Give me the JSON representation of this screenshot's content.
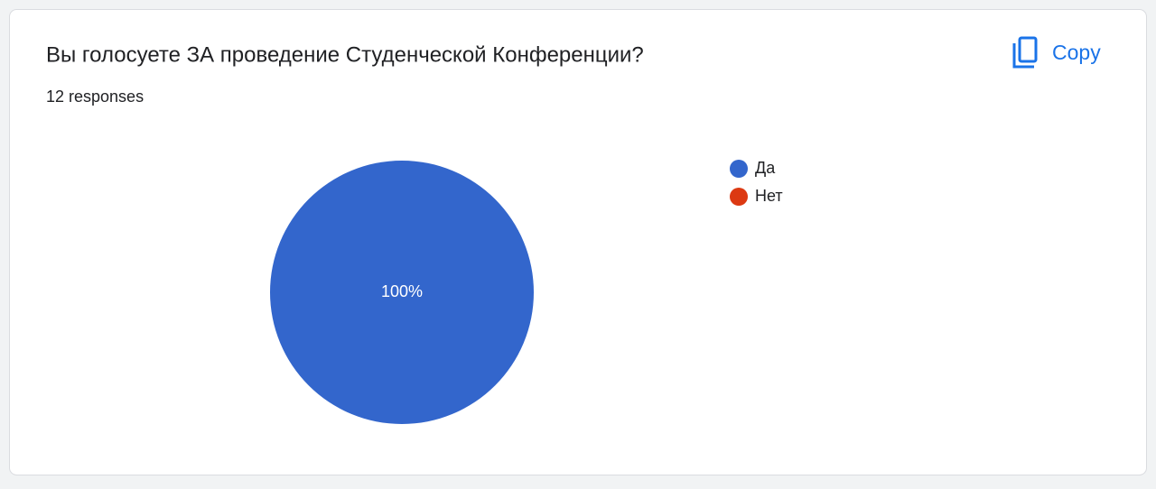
{
  "chart_data": {
    "type": "pie",
    "title": "Вы голосуете ЗА проведение Студенческой Конференции?",
    "subtitle": "12 responses",
    "categories": [
      "Да",
      "Нет"
    ],
    "values": [
      100,
      0
    ],
    "value_labels": [
      "100%",
      null
    ],
    "colors": [
      "#3366cc",
      "#dc3912"
    ],
    "legend": "right"
  },
  "copy_button": "Copy"
}
